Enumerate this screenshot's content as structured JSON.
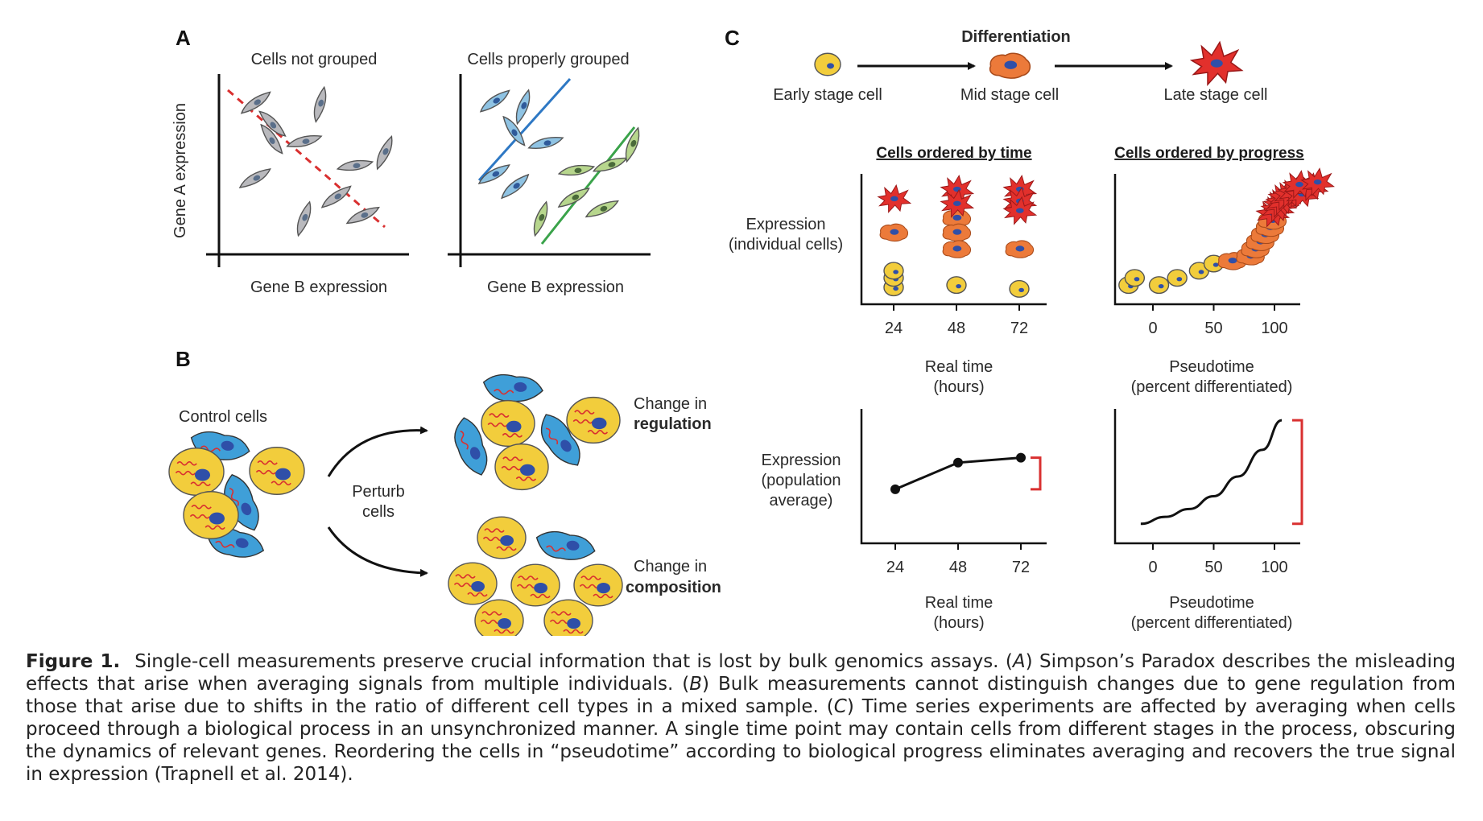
{
  "figure_label": "Figure 1.",
  "caption": [
    {
      "text": "Single-cell measurements preserve crucial information that is lost by bulk genomics assays. (",
      "italic": false
    },
    {
      "text": "A",
      "italic": true
    },
    {
      "text": ") Simpson’s Paradox describes the misleading effects that arise when averaging signals from multiple individuals. (",
      "italic": false
    },
    {
      "text": "B",
      "italic": true
    },
    {
      "text": ") Bulk measurements cannot distinguish changes due to gene regulation from those that arise due to shifts in the ratio of different cell types in a mixed sample. (",
      "italic": false
    },
    {
      "text": "C",
      "italic": true
    },
    {
      "text": ") Time series experiments are affected by averaging when cells proceed through a biological process in an unsynchronized manner. A single time point may contain cells from different stages in the process, obscuring the dynamics of relevant genes. Reordering the cells in “pseudotime” according to biological progress eliminates averaging and recovers the true signal in expression (Trapnell et al. 2014).",
      "italic": false
    }
  ],
  "panel_a": {
    "label": "A",
    "left_title": "Cells not grouped",
    "right_title": "Cells properly grouped",
    "ylabel": "Gene A expression",
    "xlabel": "Gene B expression",
    "colors": {
      "ungrouped": "#b9b9bd",
      "group1": "#8fc3e3",
      "group2": "#b7d68d",
      "trend_all": "#d93030",
      "trend_1": "#2e78c4",
      "trend_2": "#3aa34a"
    }
  },
  "panel_b": {
    "label": "B",
    "control_label": "Control cells",
    "perturb_label": "Perturb cells",
    "regulation_prefix": "Change in",
    "regulation_word": "regulation",
    "composition_prefix": "Change in",
    "composition_word": "composition",
    "colors": {
      "round_cell": "#f2cd3c",
      "flat_cell": "#3f9fd8",
      "nucleus": "#2f4fa8",
      "transcript": "#d93030"
    }
  },
  "panel_c": {
    "label": "C",
    "process_title": "Differentiation",
    "stages": [
      "Early stage cell",
      "Mid stage cell",
      "Late stage cell"
    ],
    "header_time": "Cells ordered by time",
    "header_progress": "Cells ordered by progress",
    "ylabel_individual": "Expression (individual cells)",
    "ylabel_individual_lines": [
      "Expression",
      "(individual cells)"
    ],
    "ylabel_population_lines": [
      "Expression",
      "(population",
      "average)"
    ],
    "xlabel_time_lines": [
      "Real time",
      "(hours)"
    ],
    "xlabel_pseudo_lines": [
      "Pseudotime",
      "(percent differentiated)"
    ],
    "colors": {
      "early": "#f2cd3c",
      "mid": "#ec7a3a",
      "late": "#e2302c",
      "nucleus": "#2f4fa8",
      "bracket": "#d93030"
    }
  },
  "chart_data": [
    {
      "type": "scatter",
      "title": "Cells ordered by time",
      "xlabel": "Real time (hours)",
      "ylabel": "Expression (individual cells)",
      "x_ticks": [
        24,
        48,
        72
      ],
      "series": [
        {
          "name": "Early stage cell",
          "points": [
            [
              24,
              0.15
            ],
            [
              24,
              0.35
            ],
            [
              24,
              0.5
            ],
            [
              48,
              0.2
            ],
            [
              72,
              0.12
            ]
          ]
        },
        {
          "name": "Mid stage cell",
          "points": [
            [
              24,
              1.3
            ],
            [
              48,
              1.6
            ],
            [
              48,
              1.3
            ],
            [
              48,
              0.95
            ],
            [
              72,
              0.95
            ]
          ]
        },
        {
          "name": "Late stage cell",
          "points": [
            [
              24,
              2.0
            ],
            [
              48,
              2.2
            ],
            [
              48,
              1.9
            ],
            [
              72,
              2.2
            ],
            [
              72,
              1.95
            ],
            [
              72,
              1.75
            ]
          ]
        }
      ]
    },
    {
      "type": "scatter",
      "title": "Cells ordered by progress",
      "xlabel": "Pseudotime (percent differentiated)",
      "ylabel": "Expression (individual cells)",
      "x_ticks": [
        0,
        50,
        100
      ],
      "series": [
        {
          "name": "Early stage cell",
          "points": [
            [
              -20,
              0.2
            ],
            [
              -15,
              0.35
            ],
            [
              5,
              0.2
            ],
            [
              20,
              0.35
            ],
            [
              38,
              0.5
            ],
            [
              50,
              0.65
            ]
          ]
        },
        {
          "name": "Mid stage cell",
          "points": [
            [
              65,
              0.7
            ],
            [
              80,
              0.8
            ],
            [
              84,
              0.95
            ],
            [
              88,
              1.1
            ],
            [
              92,
              1.25
            ],
            [
              96,
              1.4
            ],
            [
              98,
              1.55
            ]
          ]
        },
        {
          "name": "Late stage cell",
          "points": [
            [
              98,
              1.7
            ],
            [
              102,
              1.8
            ],
            [
              104,
              1.9
            ],
            [
              106,
              1.95
            ],
            [
              108,
              2.05
            ],
            [
              112,
              2.1
            ],
            [
              116,
              2.15
            ],
            [
              122,
              2.1
            ],
            [
              130,
              2.25
            ],
            [
              120,
              2.3
            ],
            [
              135,
              2.35
            ]
          ]
        }
      ]
    },
    {
      "type": "line",
      "xlabel": "Real time (hours)",
      "ylabel": "Expression (population average)",
      "x": [
        24,
        48,
        72
      ],
      "y": [
        0.45,
        0.72,
        0.77
      ],
      "x_ticks": [
        24,
        48,
        72
      ]
    },
    {
      "type": "line",
      "xlabel": "Pseudotime (percent differentiated)",
      "ylabel": "Expression (population average)",
      "x": [
        -10,
        10,
        30,
        50,
        70,
        90,
        106
      ],
      "y": [
        0.1,
        0.17,
        0.25,
        0.38,
        0.58,
        0.85,
        1.15
      ],
      "x_ticks": [
        0,
        50,
        100
      ]
    }
  ]
}
